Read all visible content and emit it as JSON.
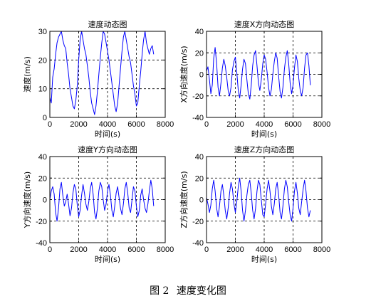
{
  "figure_caption": {
    "number": "图 2",
    "text": "速度变化图"
  },
  "chart_data": [
    {
      "type": "line",
      "title": "速度动态图",
      "xlabel": "时间(s)",
      "ylabel": "速度(m/s)",
      "xlim": [
        0,
        8000
      ],
      "ylim": [
        0,
        30
      ],
      "xticks": [
        0,
        2000,
        4000,
        6000,
        8000
      ],
      "yticks": [
        0,
        10,
        20,
        30
      ],
      "grid": true,
      "grid_style": "dashed",
      "color": "#0000ff",
      "series": [
        {
          "x": [
            0,
            100,
            200,
            300,
            400,
            500,
            600,
            700,
            800,
            900,
            1000,
            1100,
            1200,
            1300,
            1400,
            1500,
            1600,
            1700,
            1800,
            1900,
            2000,
            2100,
            2200,
            2300,
            2400,
            2500,
            2600,
            2700,
            2800,
            2900,
            3000,
            3100,
            3200,
            3300,
            3400,
            3500,
            3600,
            3700,
            3800,
            3900,
            4000,
            4100,
            4200,
            4300,
            4400,
            4500,
            4600,
            4700,
            4800,
            4900,
            5000,
            5100,
            5200,
            5300,
            5400,
            5500,
            5600,
            5700,
            5800,
            5900,
            6000,
            6100,
            6200,
            6300,
            6400,
            6500,
            6600,
            6700,
            6800,
            6900,
            7000,
            7100,
            7200
          ],
          "y": [
            7,
            5,
            14,
            17,
            22,
            26,
            28,
            29,
            30,
            27,
            25,
            24,
            19,
            15,
            10,
            7,
            4,
            3,
            6,
            11,
            20,
            27,
            30,
            27,
            24,
            22,
            18,
            14,
            9,
            5,
            3,
            1,
            4,
            9,
            15,
            21,
            26,
            30,
            29,
            26,
            23,
            20,
            16,
            12,
            8,
            4,
            2,
            5,
            11,
            17,
            23,
            28,
            30,
            27,
            24,
            21,
            19,
            15,
            11,
            8,
            4,
            5,
            11,
            16,
            22,
            27,
            30,
            26,
            24,
            22,
            24,
            25,
            22
          ]
        }
      ]
    },
    {
      "type": "line",
      "title": "速度X方向动态图",
      "xlabel": "时间(s)",
      "ylabel": "X方向速度(m/s)",
      "xlim": [
        0,
        8000
      ],
      "ylim": [
        -40,
        40
      ],
      "xticks": [
        0,
        2000,
        4000,
        6000,
        8000
      ],
      "yticks": [
        -40,
        -20,
        0,
        20,
        40
      ],
      "grid": true,
      "grid_style": "dashed",
      "color": "#0000ff",
      "series": [
        {
          "x": [
            0,
            100,
            200,
            300,
            400,
            500,
            600,
            700,
            800,
            900,
            1000,
            1100,
            1200,
            1300,
            1400,
            1500,
            1600,
            1700,
            1800,
            1900,
            2000,
            2100,
            2200,
            2300,
            2400,
            2500,
            2600,
            2700,
            2800,
            2900,
            3000,
            3100,
            3200,
            3300,
            3400,
            3500,
            3600,
            3700,
            3800,
            3900,
            4000,
            4100,
            4200,
            4300,
            4400,
            4500,
            4600,
            4700,
            4800,
            4900,
            5000,
            5100,
            5200,
            5300,
            5400,
            5500,
            5600,
            5700,
            5800,
            5900,
            6000,
            6100,
            6200,
            6300,
            6400,
            6500,
            6600,
            6700,
            6800,
            6900,
            7000,
            7100,
            7200
          ],
          "y": [
            3,
            7,
            -5,
            -18,
            -10,
            15,
            25,
            10,
            -12,
            -20,
            -8,
            6,
            14,
            8,
            -3,
            -15,
            -20,
            -12,
            4,
            12,
            16,
            2,
            -15,
            -22,
            -10,
            5,
            14,
            10,
            -5,
            -18,
            -23,
            -10,
            8,
            18,
            22,
            8,
            -8,
            -15,
            -5,
            10,
            18,
            14,
            2,
            -12,
            -20,
            -14,
            0,
            12,
            20,
            15,
            -2,
            -16,
            -22,
            -12,
            5,
            16,
            22,
            10,
            -8,
            -18,
            -10,
            6,
            18,
            12,
            -4,
            -15,
            -20,
            -12,
            6,
            18,
            20,
            8,
            -10
          ]
        }
      ]
    },
    {
      "type": "line",
      "title": "速度Y方向动态图",
      "xlabel": "时间(s)",
      "ylabel": "Y方向速度(m/s)",
      "xlim": [
        0,
        8000
      ],
      "ylim": [
        -40,
        40
      ],
      "xticks": [
        0,
        2000,
        4000,
        6000,
        8000
      ],
      "yticks": [
        -40,
        -20,
        0,
        20,
        40
      ],
      "grid": true,
      "grid_style": "dashed",
      "color": "#0000ff",
      "series": [
        {
          "x": [
            0,
            100,
            200,
            300,
            400,
            500,
            600,
            700,
            800,
            900,
            1000,
            1100,
            1200,
            1300,
            1400,
            1500,
            1600,
            1700,
            1800,
            1900,
            2000,
            2100,
            2200,
            2300,
            2400,
            2500,
            2600,
            2700,
            2800,
            2900,
            3000,
            3100,
            3200,
            3300,
            3400,
            3500,
            3600,
            3700,
            3800,
            3900,
            4000,
            4100,
            4200,
            4300,
            4400,
            4500,
            4600,
            4700,
            4800,
            4900,
            5000,
            5100,
            5200,
            5300,
            5400,
            5500,
            5600,
            5700,
            5800,
            5900,
            6000,
            6100,
            6200,
            6300,
            6400,
            6500,
            6600,
            6700,
            6800,
            6900,
            7000,
            7100,
            7200
          ],
          "y": [
            0,
            8,
            12,
            5,
            -12,
            -20,
            -8,
            10,
            16,
            4,
            -6,
            -2,
            5,
            -4,
            -15,
            -8,
            6,
            14,
            10,
            -5,
            -16,
            -10,
            4,
            14,
            6,
            -4,
            -10,
            -2,
            10,
            16,
            5,
            -12,
            -18,
            -8,
            8,
            16,
            12,
            0,
            -10,
            -4,
            8,
            14,
            4,
            -10,
            -16,
            -6,
            6,
            12,
            2,
            -8,
            -14,
            -4,
            10,
            16,
            6,
            -8,
            -12,
            0,
            12,
            8,
            -6,
            -16,
            -10,
            4,
            10,
            0,
            -8,
            -12,
            -4,
            8,
            18,
            10,
            -6
          ]
        }
      ]
    },
    {
      "type": "line",
      "title": "速度Z方向动态图",
      "xlabel": "时间(s)",
      "ylabel": "Z方向速度(m/s)",
      "xlim": [
        0,
        8000
      ],
      "ylim": [
        -40,
        40
      ],
      "xticks": [
        0,
        2000,
        4000,
        6000,
        8000
      ],
      "yticks": [
        -40,
        -20,
        0,
        20,
        40
      ],
      "grid": true,
      "grid_style": "dashed",
      "color": "#0000ff",
      "series": [
        {
          "x": [
            0,
            100,
            200,
            300,
            400,
            500,
            600,
            700,
            800,
            900,
            1000,
            1100,
            1200,
            1300,
            1400,
            1500,
            1600,
            1700,
            1800,
            1900,
            2000,
            2100,
            2200,
            2300,
            2400,
            2500,
            2600,
            2700,
            2800,
            2900,
            3000,
            3100,
            3200,
            3300,
            3400,
            3500,
            3600,
            3700,
            3800,
            3900,
            4000,
            4100,
            4200,
            4300,
            4400,
            4500,
            4600,
            4700,
            4800,
            4900,
            5000,
            5100,
            5200,
            5300,
            5400,
            5500,
            5600,
            5700,
            5800,
            5900,
            6000,
            6100,
            6200,
            6300,
            6400,
            6500,
            6600,
            6700,
            6800,
            6900,
            7000,
            7100,
            7200
          ],
          "y": [
            2,
            -4,
            -12,
            -5,
            10,
            18,
            8,
            -8,
            -16,
            -6,
            8,
            14,
            4,
            -10,
            -18,
            -8,
            6,
            16,
            10,
            -4,
            -12,
            -2,
            12,
            20,
            8,
            -10,
            -20,
            -10,
            4,
            14,
            18,
            6,
            -10,
            -18,
            -8,
            8,
            18,
            14,
            0,
            -14,
            -16,
            -4,
            10,
            18,
            8,
            -6,
            -14,
            -4,
            10,
            16,
            4,
            -12,
            -18,
            -6,
            10,
            18,
            12,
            -2,
            -14,
            -20,
            -8,
            8,
            16,
            6,
            -8,
            -14,
            -2,
            10,
            18,
            8,
            -8,
            -16,
            -10
          ]
        }
      ]
    }
  ]
}
